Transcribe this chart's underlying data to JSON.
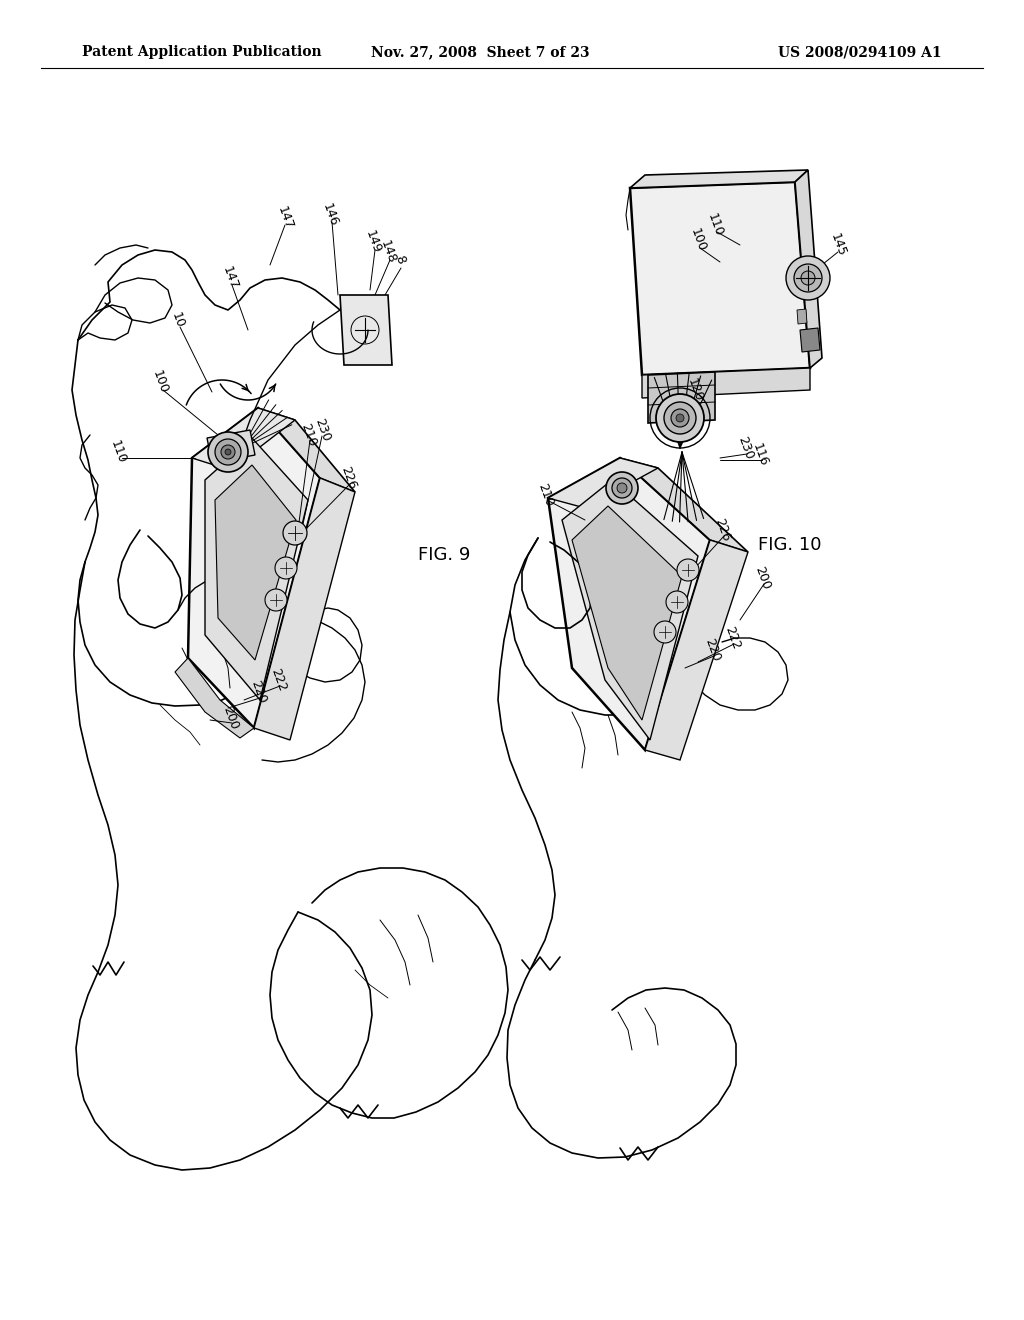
{
  "background_color": "#ffffff",
  "header_left": "Patent Application Publication",
  "header_center": "Nov. 27, 2008  Sheet 7 of 23",
  "header_right": "US 2008/0294109 A1",
  "fig9_label": "FIG. 9",
  "fig10_label": "FIG. 10",
  "header_fontsize": 10,
  "label_fontsize": 9,
  "fig_label_fontsize": 13
}
